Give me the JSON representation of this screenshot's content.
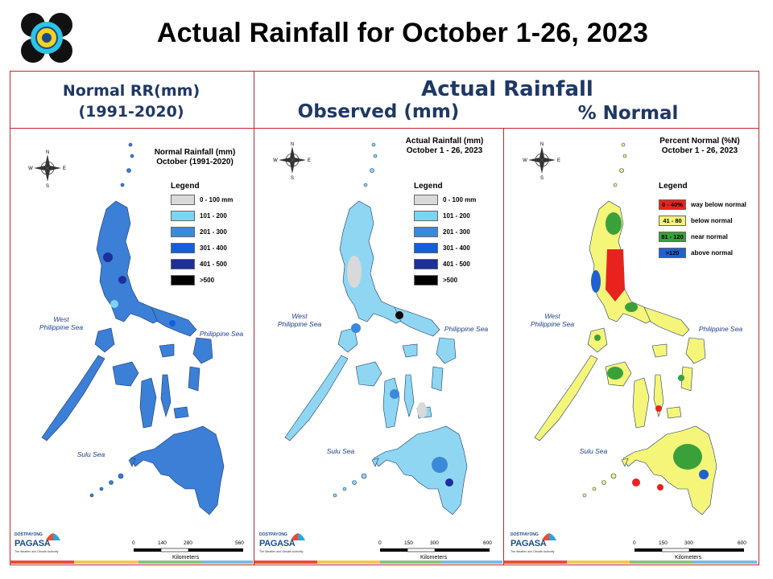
{
  "title": "Actual Rainfall for October 1-26, 2023",
  "headers": {
    "normal_line1": "Normal RR(mm)",
    "normal_line2": "(1991-2020)",
    "actual": "Actual Rainfall",
    "observed": "Observed (mm)",
    "percent_normal": "% Normal"
  },
  "colors": {
    "frame": "#c0282d",
    "header_text": "#1f3864",
    "sea_text": "#1e3f8a"
  },
  "panels": {
    "normal": {
      "title_line1": "Normal Rainfall (mm)",
      "title_line2": "October (1991-2020)",
      "legend_title": "Legend",
      "legend": [
        {
          "label": "0 - 100 mm",
          "color": "#d9d9d9"
        },
        {
          "label": "101 - 200",
          "color": "#7fd3f2"
        },
        {
          "label": "201 - 300",
          "color": "#3b8ad9"
        },
        {
          "label": "301 - 400",
          "color": "#1060d8"
        },
        {
          "label": "401 - 500",
          "color": "#1c2f9a"
        },
        {
          "label": ">500",
          "color": "#000000"
        }
      ],
      "seas": {
        "west": "West",
        "west2": "Philippine Sea",
        "east": "Philippine Sea",
        "south": "Sulu Sea"
      },
      "scale": {
        "ticks": [
          "0",
          "140",
          "280",
          "560"
        ],
        "unit": "Kilometers"
      }
    },
    "observed": {
      "title_line1": "Actual Rainfall (mm)",
      "title_line2": "October 1 - 26, 2023",
      "legend_title": "Legend",
      "legend": [
        {
          "label": "0 - 100 mm",
          "color": "#d9d9d9"
        },
        {
          "label": "101 - 200",
          "color": "#7fd3f2"
        },
        {
          "label": "201 - 300",
          "color": "#3b8ad9"
        },
        {
          "label": "301 - 400",
          "color": "#1060d8"
        },
        {
          "label": "401 - 500",
          "color": "#1c2f9a"
        },
        {
          "label": ">500",
          "color": "#000000"
        }
      ],
      "seas": {
        "west": "West",
        "west2": "Philippine Sea",
        "east": "Philippine Sea",
        "south": "Sulu Sea"
      },
      "scale": {
        "ticks": [
          "0",
          "150",
          "300",
          "600"
        ],
        "unit": "Kilometers"
      }
    },
    "percent": {
      "title_line1": "Percent Normal (%N)",
      "title_line2": "October 1 - 26, 2023",
      "legend_title": "Legend",
      "legend": [
        {
          "swatch": "0 - 40%",
          "label": "way below normal",
          "color": "#e8231e"
        },
        {
          "swatch": "41 - 80",
          "label": "below normal",
          "color": "#f5f57a"
        },
        {
          "swatch": "81 - 120",
          "label": "near normal",
          "color": "#3aa13a"
        },
        {
          "swatch": ">120",
          "label": "above normal",
          "color": "#2060d0"
        }
      ],
      "seas": {
        "west": "West",
        "west2": "Philippine Sea",
        "east": "Philippine Sea",
        "south": "Sulu Sea"
      },
      "scale": {
        "ticks": [
          "0",
          "150",
          "300",
          "600"
        ],
        "unit": "Kilometers"
      }
    }
  },
  "branding": {
    "dost": "DOST",
    "payong": "PAYONG",
    "pagasa": "PAGASA",
    "tagline": "The Weather and Climate Authority"
  },
  "compass": {
    "n": "N",
    "s": "S",
    "e": "E",
    "w": "W"
  }
}
